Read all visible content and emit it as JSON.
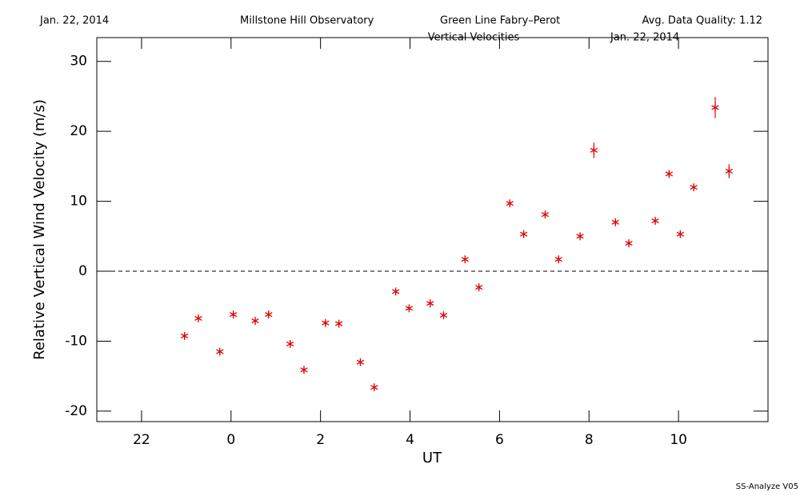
{
  "chart_data": {
    "type": "scatter",
    "header": [
      "Jan. 22, 2014",
      "Millstone Hill Observatory",
      "Green Line Fabry–Perot",
      "Avg. Data Quality: 1.12"
    ],
    "title": "Vertical Velocities",
    "title_date": "Jan. 22, 2014",
    "footer": "SS-Analyze V05",
    "xlabel": "UT",
    "ylabel": "Relative Vertical Wind Velocity (m/s)",
    "xlim": [
      -3,
      12
    ],
    "ylim": [
      -21.5,
      33.4
    ],
    "xticks": [
      {
        "value": -2,
        "label": "22"
      },
      0,
      2,
      4,
      6,
      8,
      10
    ],
    "yticks": [
      -20,
      -10,
      0,
      10,
      20,
      30
    ],
    "hline": 0,
    "series": [
      {
        "color": "#e00000",
        "x": [
          -1.04,
          -0.73,
          -0.25,
          0.05,
          0.54,
          0.84,
          1.32,
          1.63,
          2.11,
          2.41,
          2.89,
          3.2,
          3.68,
          3.98,
          4.45,
          4.75,
          5.23,
          5.54,
          6.23,
          6.54,
          7.02,
          7.32,
          7.8,
          8.11,
          8.59,
          8.89,
          9.48,
          9.79,
          10.04,
          10.34,
          10.82,
          11.13
        ],
        "y": [
          -9.26,
          -6.74,
          -11.5,
          -6.2,
          -7.1,
          -6.2,
          -10.4,
          -14.1,
          -7.4,
          -7.5,
          -13.0,
          -16.6,
          -2.9,
          -5.3,
          -4.6,
          -6.3,
          1.7,
          -2.3,
          9.7,
          5.3,
          8.1,
          1.7,
          5.0,
          17.3,
          7.0,
          4.0,
          7.2,
          13.9,
          5.3,
          12.0,
          23.4,
          14.3
        ],
        "err": [
          0.4,
          0.4,
          0.4,
          0.4,
          0.4,
          0.4,
          0.4,
          0.4,
          0.4,
          0.4,
          0.4,
          0.4,
          0.4,
          0.4,
          0.4,
          0.4,
          0.4,
          0.4,
          0.4,
          0.4,
          0.4,
          0.4,
          0.4,
          1.1,
          0.4,
          0.4,
          0.4,
          0.5,
          0.4,
          0.4,
          1.5,
          1.0
        ]
      }
    ]
  }
}
